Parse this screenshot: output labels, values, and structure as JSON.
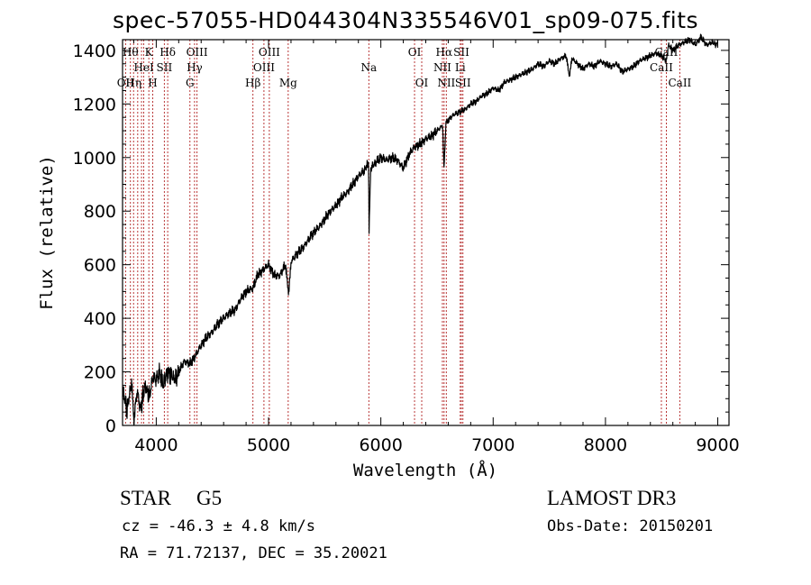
{
  "title": "spec-57055-HD044304N335546V01_sp09-075.fits",
  "info": {
    "object_class": "STAR",
    "subclass": "G5",
    "survey": "LAMOST DR3",
    "cz": "cz = -46.3 ± 4.8 km/s",
    "obs_date": "Obs-Date: 20150201",
    "coords": "RA =  71.72137, DEC =  35.20021"
  },
  "chart_data": {
    "type": "line",
    "title": "spec-57055-HD044304N335546V01_sp09-075.fits",
    "xlabel": "Wavelength (Å)",
    "ylabel": "Flux (relative)",
    "xlim": [
      3700,
      9100
    ],
    "ylim": [
      0,
      1440
    ],
    "x_ticks": [
      4000,
      5000,
      6000,
      7000,
      8000,
      9000
    ],
    "y_ticks": [
      0,
      200,
      400,
      600,
      800,
      1000,
      1200,
      1400
    ],
    "grid": false,
    "series": [
      {
        "name": "flux",
        "x": [
          3700,
          3740,
          3780,
          3800,
          3830,
          3860,
          3900,
          3940,
          3970,
          4000,
          4030,
          4060,
          4100,
          4130,
          4170,
          4200,
          4250,
          4300,
          4350,
          4400,
          4450,
          4500,
          4550,
          4600,
          4650,
          4700,
          4750,
          4800,
          4850,
          4870,
          4900,
          4950,
          5000,
          5050,
          5100,
          5150,
          5180,
          5200,
          5250,
          5300,
          5350,
          5400,
          5450,
          5500,
          5550,
          5600,
          5650,
          5700,
          5750,
          5800,
          5850,
          5890,
          5895,
          5910,
          5950,
          6000,
          6050,
          6100,
          6150,
          6200,
          6250,
          6300,
          6350,
          6400,
          6450,
          6500,
          6550,
          6562,
          6580,
          6600,
          6650,
          6700,
          6750,
          6800,
          6850,
          6900,
          6950,
          7000,
          7050,
          7100,
          7150,
          7200,
          7250,
          7300,
          7350,
          7400,
          7450,
          7500,
          7550,
          7600,
          7650,
          7680,
          7700,
          7750,
          7800,
          7850,
          7900,
          7950,
          8000,
          8050,
          8100,
          8150,
          8200,
          8250,
          8300,
          8350,
          8400,
          8450,
          8500,
          8542,
          8560,
          8600,
          8650,
          8700,
          8750,
          8800,
          8850,
          8900,
          8950,
          8990,
          9000
        ],
        "y": [
          130,
          60,
          160,
          20,
          130,
          60,
          150,
          110,
          180,
          170,
          200,
          150,
          200,
          190,
          170,
          200,
          240,
          230,
          260,
          300,
          330,
          350,
          380,
          400,
          420,
          430,
          470,
          500,
          510,
          520,
          560,
          580,
          600,
          560,
          560,
          600,
          490,
          610,
          640,
          660,
          690,
          720,
          740,
          770,
          800,
          820,
          850,
          870,
          900,
          930,
          950,
          980,
          730,
          960,
          980,
          1000,
          990,
          1000,
          990,
          960,
          1010,
          1040,
          1050,
          1070,
          1080,
          1100,
          1120,
          960,
          1130,
          1140,
          1160,
          1170,
          1180,
          1200,
          1210,
          1230,
          1240,
          1260,
          1250,
          1280,
          1290,
          1300,
          1310,
          1320,
          1330,
          1350,
          1340,
          1360,
          1350,
          1370,
          1380,
          1300,
          1370,
          1350,
          1330,
          1350,
          1340,
          1360,
          1350,
          1340,
          1350,
          1320,
          1330,
          1340,
          1360,
          1370,
          1380,
          1390,
          1380,
          1360,
          1420,
          1400,
          1420,
          1430,
          1440,
          1420,
          1450,
          1420,
          1430,
          1420,
          1440
        ]
      }
    ],
    "spectral_lines": [
      {
        "wavelength": 3727,
        "label": "OII",
        "row": 3
      },
      {
        "wavelength": 3770,
        "label": "Hθ",
        "row": 1
      },
      {
        "wavelength": 3798,
        "label": "Hη",
        "row": 3
      },
      {
        "wavelength": 3835,
        "label": "",
        "row": 0
      },
      {
        "wavelength": 3869,
        "label": "",
        "row": 0
      },
      {
        "wavelength": 3889,
        "label": "HeI",
        "row": 2
      },
      {
        "wavelength": 3934,
        "label": "K",
        "row": 1
      },
      {
        "wavelength": 3969,
        "label": "H",
        "row": 3
      },
      {
        "wavelength": 4072,
        "label": "SII",
        "row": 2
      },
      {
        "wavelength": 4102,
        "label": "Hδ",
        "row": 1
      },
      {
        "wavelength": 4300,
        "label": "G",
        "row": 3
      },
      {
        "wavelength": 4341,
        "label": "Hγ",
        "row": 2
      },
      {
        "wavelength": 4363,
        "label": "OIII",
        "row": 1
      },
      {
        "wavelength": 4861,
        "label": "Hβ",
        "row": 3
      },
      {
        "wavelength": 4959,
        "label": "OIII",
        "row": 2
      },
      {
        "wavelength": 5007,
        "label": "OIII",
        "row": 1
      },
      {
        "wavelength": 5175,
        "label": "Mg",
        "row": 3
      },
      {
        "wavelength": 5893,
        "label": "Na",
        "row": 2
      },
      {
        "wavelength": 6300,
        "label": "OI",
        "row": 1
      },
      {
        "wavelength": 6364,
        "label": "OI",
        "row": 3
      },
      {
        "wavelength": 6548,
        "label": "NII",
        "row": 2
      },
      {
        "wavelength": 6563,
        "label": "Hα",
        "row": 1
      },
      {
        "wavelength": 6583,
        "label": "NII",
        "row": 3
      },
      {
        "wavelength": 6707,
        "label": "Li",
        "row": 2
      },
      {
        "wavelength": 6717,
        "label": "SII",
        "row": 1
      },
      {
        "wavelength": 6731,
        "label": "SII",
        "row": 3
      },
      {
        "wavelength": 8498,
        "label": "CaII",
        "row": 2
      },
      {
        "wavelength": 8542,
        "label": "CaII",
        "row": 1
      },
      {
        "wavelength": 8662,
        "label": "CaII",
        "row": 3
      }
    ]
  }
}
